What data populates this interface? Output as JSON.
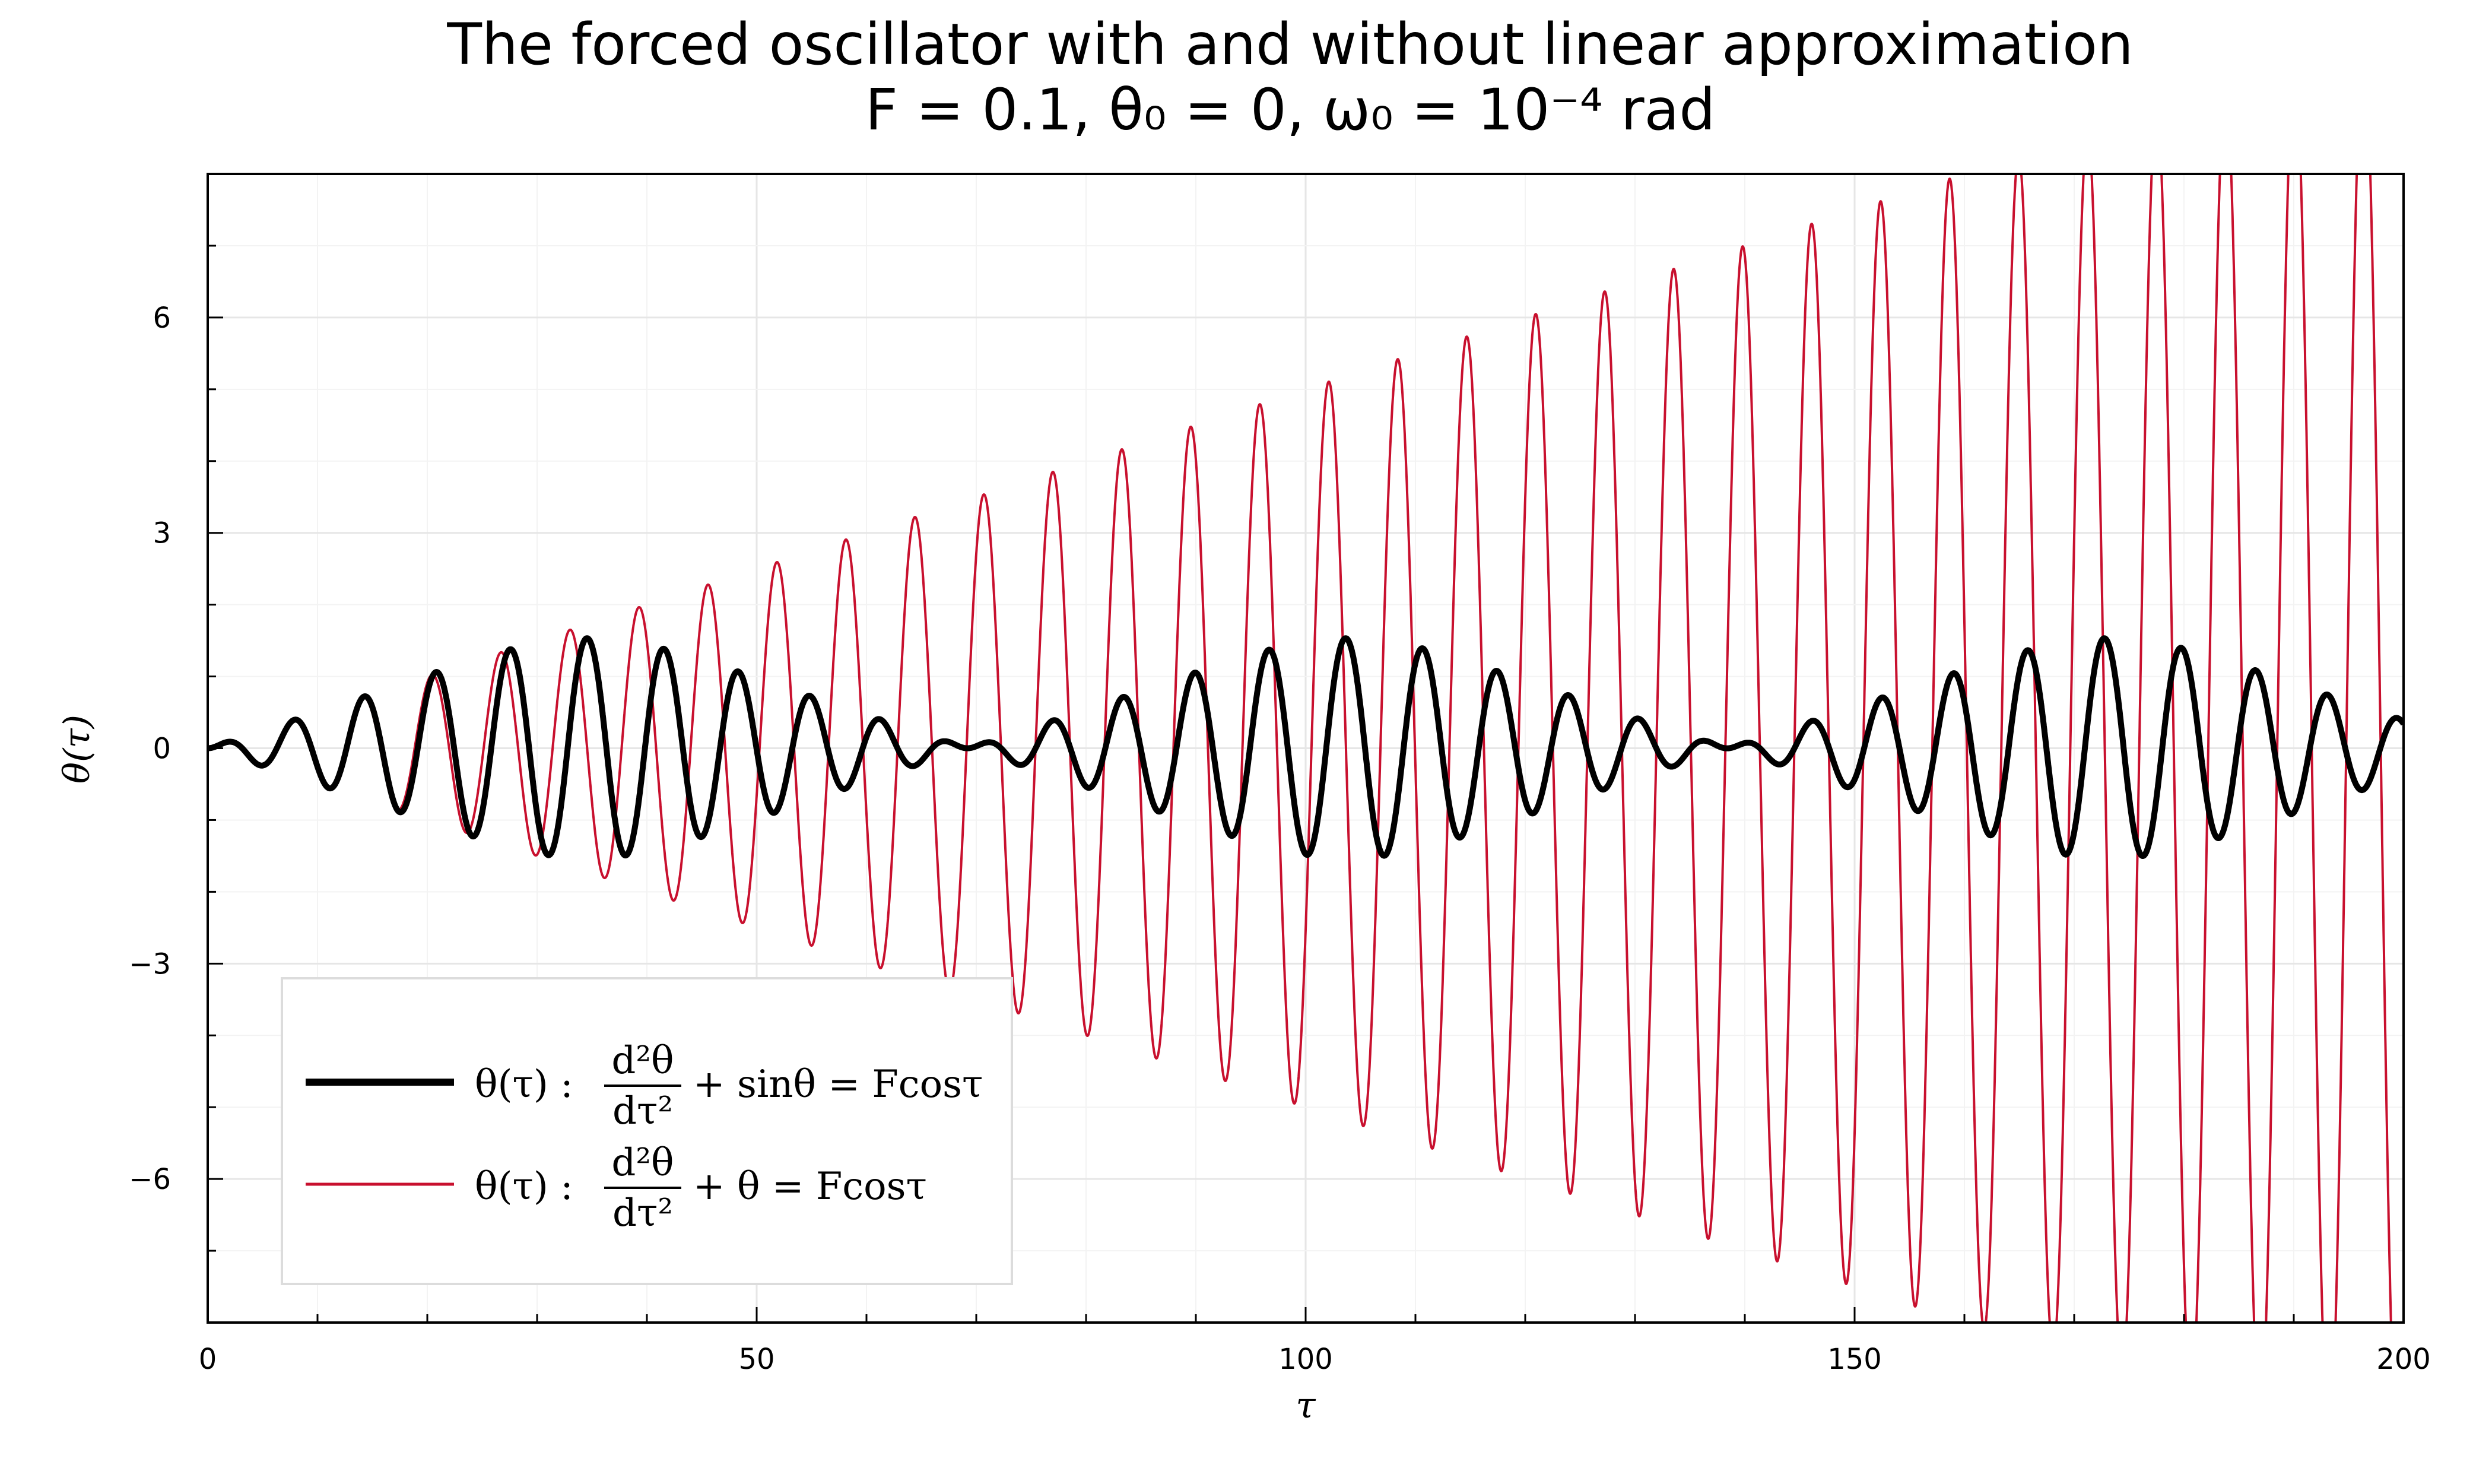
{
  "chart_data": {
    "type": "line",
    "title": "The forced oscillator with and without linear approximation",
    "subtitle": "F = 0.1, θ₀ = 0, ω₀ = 10⁻⁴ rad",
    "xlabel": "τ",
    "ylabel": "θ(τ)",
    "xlim": [
      0,
      200
    ],
    "ylim": [
      -8,
      8
    ],
    "x_ticks": [
      0,
      50,
      100,
      150,
      200
    ],
    "x_tick_labels": [
      "0",
      "50",
      "100",
      "150",
      "200"
    ],
    "y_ticks": [
      -6,
      -3,
      0,
      3,
      6
    ],
    "y_tick_labels": [
      "−6",
      "−3",
      "0",
      "3",
      "6"
    ],
    "grid": true,
    "legend_position": "bottom-left",
    "parameters": {
      "F": 0.1,
      "theta0": 0,
      "omega0": 0.0001
    },
    "series": [
      {
        "name": "θ(τ) : d²θ/dτ² + sinθ = Fcosτ",
        "legend": {
          "lhs": "θ(τ) :",
          "num": "d²θ",
          "den": "dτ²",
          "rhs": "+ sinθ = Fcosτ"
        },
        "color": "#000000",
        "equation": "nonlinear"
      },
      {
        "name": "θ(τ) : d²θ/dτ² + θ = Fcosτ",
        "legend": {
          "lhs": "θ(τ) :",
          "num": "d²θ",
          "den": "dτ²",
          "rhs": "+ θ = Fcosτ"
        },
        "color": "#c8102e",
        "equation": "linear"
      }
    ]
  }
}
